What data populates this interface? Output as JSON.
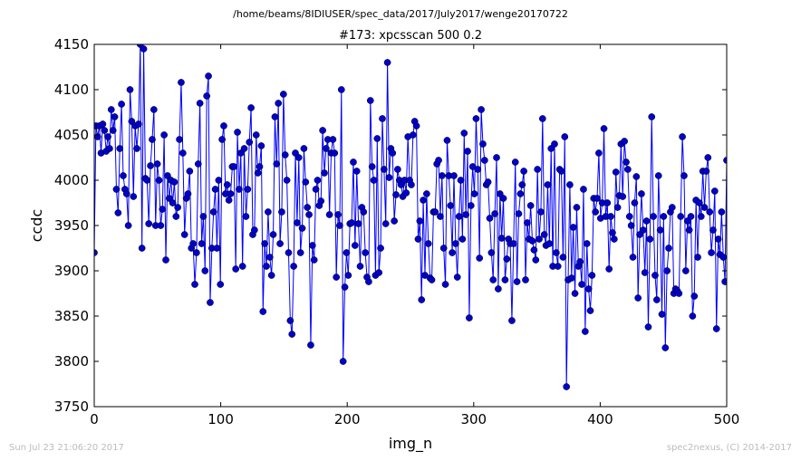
{
  "page_title": "/home/beams/8IDIUSER/spec_data/2017/July2017/wenge20170722",
  "footer_left": "Sun Jul 23 21:06:20 2017",
  "footer_right": "spec2nexus, (C) 2014-2017",
  "chart_data": {
    "type": "line",
    "title": "#173: xpcsscan 500 0.2",
    "xlabel": "img_n",
    "ylabel": "ccdc",
    "xlim": [
      0,
      500
    ],
    "ylim": [
      3750,
      4150
    ],
    "xticks": [
      0,
      100,
      200,
      300,
      400,
      500
    ],
    "yticks": [
      3750,
      3800,
      3850,
      3900,
      3950,
      4000,
      4050,
      4100,
      4150
    ],
    "grid": false,
    "line_color": "#0000ff",
    "marker_color": "#0000cc",
    "marker": "circle",
    "series": [
      {
        "y": [
          3920,
          4060,
          4048,
          4060,
          4030,
          4062,
          4055,
          4032,
          4048,
          4035,
          4078,
          4055,
          4070,
          3990,
          3964,
          4035,
          4084,
          4005,
          3990,
          3985,
          3950,
          4100,
          4065,
          3982,
          4060,
          4035,
          4062,
          4150,
          3925,
          4145,
          4002,
          4000,
          3952,
          4016,
          4045,
          4078,
          3950,
          4018,
          4000,
          3950,
          3968,
          4050,
          3912,
          4005,
          3980,
          4000,
          3975,
          3998,
          3960,
          3970,
          4045,
          4108,
          4030,
          3940,
          3980,
          3985,
          4010,
          3925,
          3930,
          3885,
          3920,
          4018,
          4085,
          3930,
          3960,
          3900,
          4093,
          4115,
          3865,
          3925,
          3965,
          3990,
          3925,
          4000,
          3885,
          4045,
          4060,
          3985,
          3995,
          3978,
          3985,
          4015,
          4015,
          3902,
          4053,
          3990,
          4030,
          3905,
          4035,
          3960,
          3990,
          4042,
          4080,
          3940,
          3945,
          4050,
          4008,
          4015,
          4038,
          3855,
          3930,
          3905,
          3965,
          3915,
          3895,
          3940,
          4070,
          4018,
          4085,
          3930,
          3965,
          4095,
          4028,
          4000,
          3920,
          3845,
          3830,
          3905,
          4030,
          3953,
          4025,
          3920,
          3947,
          4035,
          3998,
          3970,
          3962,
          3818,
          3928,
          3912,
          3990,
          4000,
          3972,
          3977,
          4055,
          4008,
          4035,
          4045,
          3962,
          4030,
          4045,
          4030,
          3893,
          3962,
          3950,
          4100,
          3800,
          3882,
          3920,
          3895,
          3952,
          3953,
          4020,
          3928,
          4010,
          3952,
          3905,
          3970,
          3965,
          3920,
          3893,
          3888,
          4088,
          4015,
          4000,
          3895,
          4046,
          3898,
          3925,
          4068,
          4012,
          3952,
          4130,
          4003,
          4035,
          4030,
          3955,
          3984,
          4012,
          4000,
          3995,
          3982,
          4000,
          3986,
          4048,
          4000,
          3995,
          4050,
          4065,
          4060,
          3935,
          3955,
          3868,
          3978,
          3895,
          3985,
          3930,
          3892,
          3890,
          3965,
          3965,
          4018,
          4022,
          3960,
          4005,
          3925,
          3885,
          4044,
          4005,
          3972,
          3920,
          4005,
          3930,
          3893,
          3960,
          4000,
          3935,
          4052,
          3962,
          4032,
          3848,
          3972,
          4015,
          3985,
          4068,
          4012,
          3914,
          4078,
          4040,
          4022,
          3995,
          3998,
          3958,
          3920,
          3890,
          3963,
          4025,
          3880,
          3985,
          3936,
          3980,
          3890,
          3913,
          3935,
          3930,
          3845,
          3930,
          4020,
          3888,
          3963,
          3985,
          3995,
          4010,
          3890,
          3953,
          3935,
          3972,
          3933,
          3923,
          3912,
          4012,
          3935,
          3965,
          4068,
          3940,
          3928,
          3995,
          3930,
          4035,
          3905,
          4040,
          3920,
          3905,
          4012,
          4010,
          3915,
          4048,
          3772,
          3890,
          3995,
          3892,
          3948,
          3875,
          3970,
          3905,
          3910,
          3885,
          3990,
          3833,
          3930,
          3880,
          3856,
          3895,
          3980,
          3965,
          3980,
          4030,
          3958,
          3975,
          4057,
          3960,
          3975,
          3902,
          3960,
          3942,
          3935,
          4009,
          3970,
          3983,
          4040,
          3982,
          4043,
          4020,
          4012,
          3960,
          3950,
          3915,
          3975,
          4004,
          3870,
          3940,
          3985,
          3945,
          3898,
          3955,
          3838,
          3935,
          4070,
          3960,
          3895,
          3868,
          4005,
          3945,
          3852,
          3960,
          3815,
          3900,
          3925,
          3965,
          3970,
          3875,
          3880,
          3878,
          3875,
          3960,
          4048,
          4005,
          3900,
          3955,
          3945,
          3960,
          3850,
          3872,
          3978,
          3915,
          3975,
          3960,
          4010,
          3970,
          4010,
          4025,
          3965,
          3920,
          3945,
          3988,
          3836,
          3935,
          3918,
          3965,
          3915,
          3888,
          4022
        ],
        "x_start": 0,
        "x_end": 500
      }
    ]
  }
}
